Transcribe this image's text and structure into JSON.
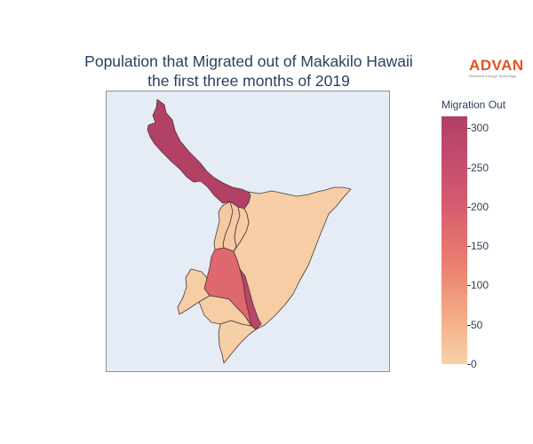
{
  "title_line1": "Population that Migrated out of Makakilo Hawaii",
  "title_line2": "the first three months of 2019",
  "logo": {
    "word": "ADVAN",
    "tagline": "Research through Technology"
  },
  "colors": {
    "map_background": "#e5ecf6",
    "border": "#4a3a3a",
    "low": "#f6d2a9",
    "high": "#b13f64"
  },
  "colorbar": {
    "title": "Migration Out",
    "range": [
      0,
      315
    ],
    "ticks": [
      {
        "value": 0,
        "label": "0"
      },
      {
        "value": 50,
        "label": "50"
      },
      {
        "value": 100,
        "label": "100"
      },
      {
        "value": 150,
        "label": "150"
      },
      {
        "value": 200,
        "label": "200"
      },
      {
        "value": 250,
        "label": "250"
      },
      {
        "value": 300,
        "label": "300"
      }
    ]
  },
  "map_data": {
    "type": "choropleth",
    "regions": [
      {
        "id": "north-arm",
        "value": 310
      },
      {
        "id": "east-large",
        "value": 8
      },
      {
        "id": "center-large",
        "value": 175
      },
      {
        "id": "strip-a",
        "value": 12
      },
      {
        "id": "strip-b",
        "value": 14
      },
      {
        "id": "strip-c",
        "value": 10
      },
      {
        "id": "west-small",
        "value": 6
      },
      {
        "id": "south-west",
        "value": 7
      },
      {
        "id": "south-small",
        "value": 5
      },
      {
        "id": "corridor",
        "value": 290
      }
    ]
  }
}
